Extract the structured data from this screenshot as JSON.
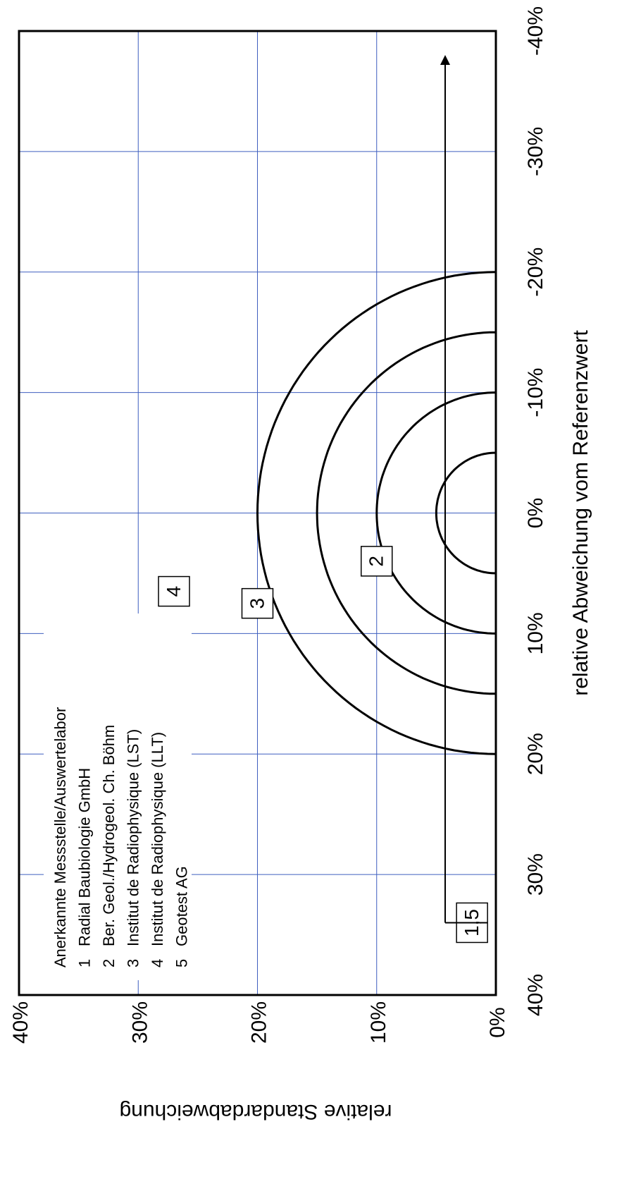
{
  "colors": {
    "grid": "#3f5fbf",
    "frame": "#000000",
    "curve": "#000000",
    "background": "#ffffff"
  },
  "chart_data": {
    "type": "scatter",
    "orientation": "rotated-90-clockwise",
    "xlabel": "relative Abweichung vom Referenzwert",
    "ylabel": "relative Standardabweichung",
    "xlim": [
      -0.4,
      0.4
    ],
    "ylim": [
      0,
      0.4
    ],
    "x_ticks": [
      -0.4,
      -0.3,
      -0.2,
      -0.1,
      0,
      0.1,
      0.2,
      0.3,
      0.4
    ],
    "x_tick_labels": [
      "-40%",
      "-30%",
      "-20%",
      "-10%",
      "0%",
      "10%",
      "20%",
      "30%",
      "40%"
    ],
    "y_ticks": [
      0,
      0.1,
      0.2,
      0.3,
      0.4
    ],
    "y_tick_labels": [
      "0%",
      "10%",
      "20%",
      "30%",
      "40%"
    ],
    "grid": true,
    "reference_circles": [
      0.05,
      0.1,
      0.15,
      0.2
    ],
    "points": [
      {
        "label": "1,5",
        "x": 0.34,
        "y": 0.02,
        "off_chart_arrow": true
      },
      {
        "label": "2",
        "x": 0.04,
        "y": 0.1
      },
      {
        "label": "3",
        "x": 0.075,
        "y": 0.2
      },
      {
        "label": "4",
        "x": 0.065,
        "y": 0.27
      }
    ],
    "legend": {
      "title": "Anerkannte Messstelle/Auswertelabor",
      "items": [
        {
          "num": "1",
          "name": "Radial Baubiologie GmbH"
        },
        {
          "num": "2",
          "name": "Ber. Geol./Hydrogeol. Ch. Böhm"
        },
        {
          "num": "3",
          "name": "Institut de Radiophysique (LST)"
        },
        {
          "num": "4",
          "name": "Institut de Radiophysique (LLT)"
        },
        {
          "num": "5",
          "name": "Geotest AG"
        }
      ],
      "placement": "bottom-left"
    }
  }
}
